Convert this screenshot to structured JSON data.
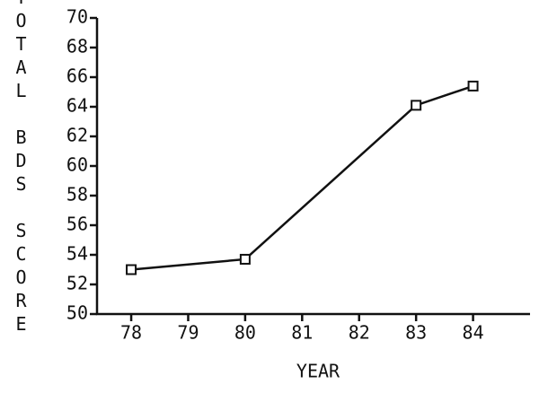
{
  "chart_data": {
    "type": "line",
    "y_label": "TOTAL BDS SCORE",
    "x_label": "YEAR",
    "x": [
      78,
      80,
      83,
      84
    ],
    "values": [
      53,
      53.7,
      64.1,
      65.4
    ],
    "color": "#111111",
    "marker": "square",
    "xlim": [
      77.4,
      85
    ],
    "xticks": [
      78,
      79,
      80,
      81,
      82,
      83,
      84
    ],
    "ylim": [
      50,
      70
    ],
    "yticks": [
      50,
      52,
      54,
      56,
      58,
      60,
      62,
      64,
      66,
      68,
      70
    ],
    "grid": false
  }
}
